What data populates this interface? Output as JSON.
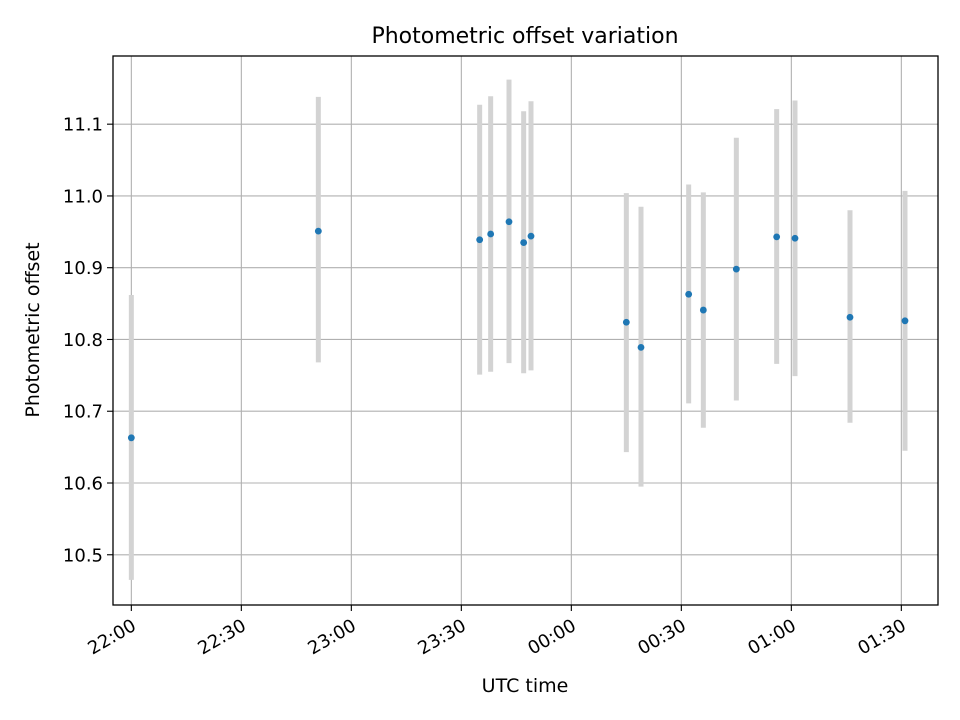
{
  "chart_data": {
    "type": "scatter",
    "title": "Photometric offset variation",
    "xlabel": "UTC time",
    "ylabel": "Photometric offset",
    "x_axis_kind": "time",
    "x_ticks": [
      "22:00",
      "22:30",
      "23:00",
      "23:30",
      "00:00",
      "00:30",
      "01:00",
      "01:30"
    ],
    "xlim": [
      "21:55",
      "01:40"
    ],
    "y_ticks": [
      "10.5",
      "10.6",
      "10.7",
      "10.8",
      "10.9",
      "11.0",
      "11.1"
    ],
    "ylim": [
      10.43,
      11.195
    ],
    "grid": true,
    "colors": {
      "point": "#1f77b4",
      "errorbar": "#d3d3d3",
      "grid": "#b0b0b0"
    },
    "series": [
      {
        "x": [
          "22:00",
          "22:51",
          "23:35",
          "23:38",
          "23:43",
          "23:47",
          "23:49",
          "00:15",
          "00:19",
          "00:32",
          "00:36",
          "00:45",
          "00:56",
          "01:01",
          "01:16",
          "01:31"
        ],
        "y": [
          10.663,
          10.951,
          10.939,
          10.947,
          10.964,
          10.935,
          10.944,
          10.824,
          10.789,
          10.863,
          10.841,
          10.898,
          10.943,
          10.941,
          10.831,
          10.826
        ],
        "yerr_low": [
          10.465,
          10.768,
          10.751,
          10.755,
          10.767,
          10.753,
          10.757,
          10.643,
          10.595,
          10.711,
          10.677,
          10.715,
          10.766,
          10.749,
          10.684,
          10.645
        ],
        "yerr_high": [
          10.862,
          11.138,
          11.127,
          11.139,
          11.162,
          11.118,
          11.132,
          11.004,
          10.985,
          11.016,
          11.005,
          11.081,
          11.121,
          11.133,
          10.98,
          11.007
        ]
      }
    ]
  }
}
